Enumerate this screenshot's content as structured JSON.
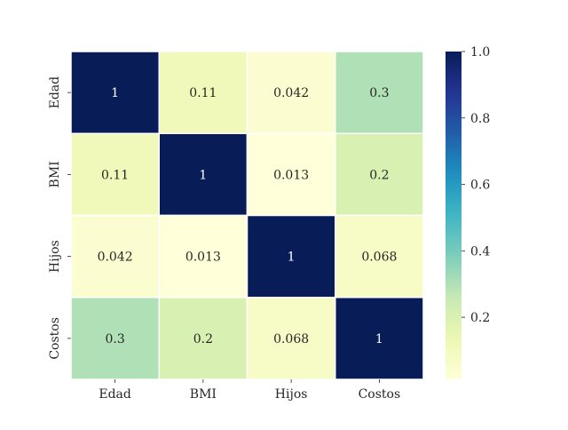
{
  "chart_data": {
    "type": "heatmap",
    "title": "",
    "xlabel": "",
    "ylabel": "",
    "x_categories": [
      "Edad",
      "BMI",
      "Hijos",
      "Costos"
    ],
    "y_categories": [
      "Edad",
      "BMI",
      "Hijos",
      "Costos"
    ],
    "values": [
      [
        1,
        0.11,
        0.042,
        0.3
      ],
      [
        0.11,
        1,
        0.013,
        0.2
      ],
      [
        0.042,
        0.013,
        1,
        0.068
      ],
      [
        0.3,
        0.2,
        0.068,
        1
      ]
    ],
    "cell_labels": [
      [
        "1",
        "0.11",
        "0.042",
        "0.3"
      ],
      [
        "0.11",
        "1",
        "0.013",
        "0.2"
      ],
      [
        "0.042",
        "0.013",
        "1",
        "0.068"
      ],
      [
        "0.3",
        "0.2",
        "0.068",
        "1"
      ]
    ],
    "colormap": "YlGnBu",
    "vmin": 0.013,
    "vmax": 1,
    "colorbar_ticks": [
      0.2,
      0.4,
      0.6,
      0.8,
      1.0
    ],
    "colorbar_tick_labels": [
      "0.2",
      "0.4",
      "0.6",
      "0.8",
      "1.0"
    ],
    "cell_border_color": "#ffffff",
    "annotation_text_dark": "#262626",
    "annotation_text_light": "#ffffff"
  }
}
